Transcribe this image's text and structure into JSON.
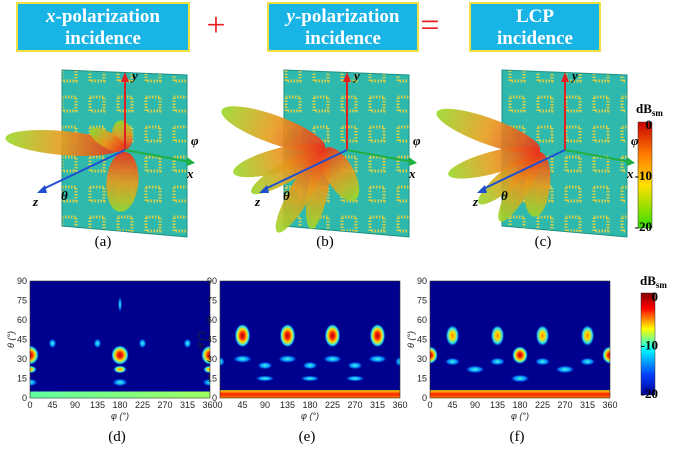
{
  "headers": [
    {
      "var": "x",
      "line1": "-polarization",
      "line2": "incidence"
    },
    {
      "var": "y",
      "line1": "-polarization",
      "line2": "incidence"
    },
    {
      "line1": "LCP",
      "line2": "incidence"
    }
  ],
  "operators": [
    "+",
    "="
  ],
  "panels3d": [
    {
      "label": "(a)",
      "axes": {
        "x": "x",
        "y": "y",
        "z": "z",
        "phi": "φ",
        "theta": "θ"
      }
    },
    {
      "label": "(b)",
      "axes": {
        "x": "x",
        "y": "y",
        "z": "z",
        "phi": "φ",
        "theta": "θ"
      }
    },
    {
      "label": "(c)",
      "axes": {
        "x": "x",
        "y": "y",
        "z": "z",
        "phi": "φ",
        "theta": "θ"
      }
    }
  ],
  "colorbar_top": {
    "unit": "dB",
    "unit_sub": "sm",
    "ticks": [
      "0",
      "-10",
      "-20"
    ]
  },
  "heatmaps": [
    {
      "label": "(d)",
      "xlabel": "φ (°)",
      "ylabel": "θ (°)",
      "xticks": [
        "0",
        "45",
        "90",
        "135",
        "180",
        "225",
        "270",
        "315",
        "360"
      ],
      "yticks": [
        "0",
        "15",
        "30",
        "45",
        "60",
        "75",
        "90"
      ]
    },
    {
      "label": "(e)",
      "xlabel": "φ (°)",
      "ylabel": "θ (°)",
      "xticks": [
        "0",
        "45",
        "90",
        "135",
        "180",
        "225",
        "270",
        "315",
        "360"
      ],
      "yticks": [
        "0",
        "15",
        "30",
        "45",
        "60",
        "75",
        "90"
      ]
    },
    {
      "label": "(f)",
      "xlabel": "φ (°)",
      "ylabel": "θ (°)",
      "xticks": [
        "0",
        "45",
        "90",
        "135",
        "180",
        "225",
        "270",
        "315",
        "360"
      ],
      "yticks": [
        "0",
        "15",
        "30",
        "45",
        "60",
        "75",
        "90"
      ]
    }
  ],
  "colorbar_bottom": {
    "unit": "dB",
    "unit_sub": "sm",
    "ticks": [
      "0",
      "-10",
      "-20"
    ]
  }
}
